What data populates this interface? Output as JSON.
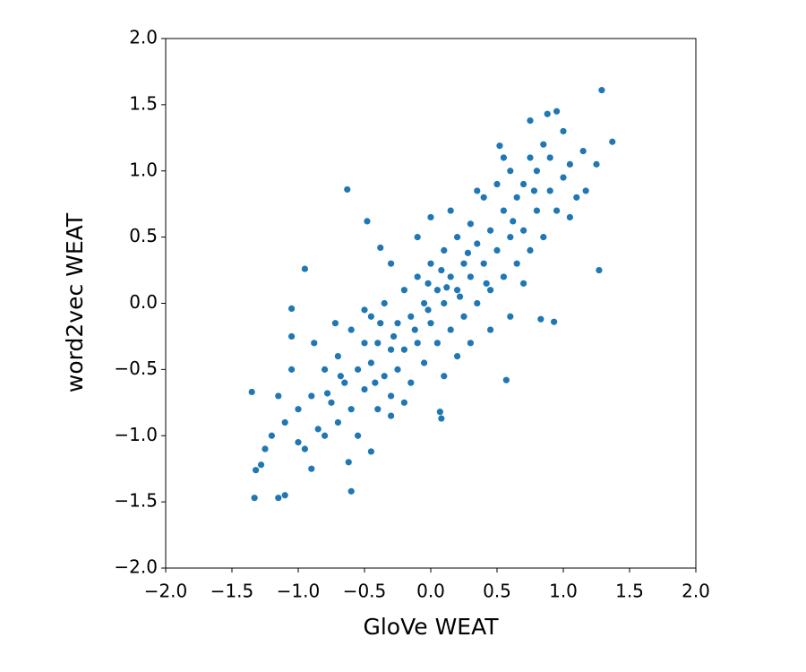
{
  "chart_data": {
    "type": "scatter",
    "xlabel": "GloVe WEAT",
    "ylabel": "word2vec WEAT",
    "color": "#1f77b4",
    "xlim": [
      -2,
      2
    ],
    "ylim": [
      -2,
      2
    ],
    "xticks": [
      {
        "value": -2,
        "label": "−2.0"
      },
      {
        "value": -1.5,
        "label": "−1.5"
      },
      {
        "value": -1,
        "label": "−1.0"
      },
      {
        "value": -0.5,
        "label": "−0.5"
      },
      {
        "value": 0,
        "label": "0.0"
      },
      0.5,
      {
        "value": 1,
        "label": "1.0"
      },
      1.5,
      {
        "value": 2,
        "label": "2.0"
      }
    ],
    "yticks": [
      {
        "value": -2,
        "label": "−2.0"
      },
      {
        "value": -1.5,
        "label": "−1.5"
      },
      {
        "value": -1,
        "label": "−1.0"
      },
      {
        "value": -0.5,
        "label": "−0.5"
      },
      {
        "value": 0,
        "label": "0.0"
      },
      0.5,
      {
        "value": 1,
        "label": "1.0"
      },
      1.5,
      {
        "value": 2,
        "label": "2.0"
      }
    ],
    "x": [
      1.29,
      1.37,
      1.27,
      0.95,
      0.88,
      0.75,
      -0.63,
      -0.95,
      -1.05,
      -1.35,
      -1.33,
      -1.15,
      -0.6,
      0.57,
      0.93,
      1.17,
      1.05,
      1.25,
      0.52,
      -1.1,
      -1.32,
      -1.28,
      -0.48,
      -0.38,
      0.83,
      -1.05,
      -1.05,
      0.08,
      0.07,
      -0.3,
      -0.45,
      -1.0,
      -0.9,
      -1.2,
      -1.1,
      -1.0,
      -0.95,
      -0.9,
      -0.85,
      -0.8,
      -0.8,
      -0.75,
      -0.7,
      -0.7,
      -0.65,
      -0.6,
      -0.6,
      -0.55,
      -0.55,
      -0.5,
      -0.5,
      -0.45,
      -0.45,
      -0.4,
      -0.4,
      -0.35,
      -0.35,
      -0.3,
      -0.3,
      -0.25,
      -0.25,
      -0.2,
      -0.2,
      -0.15,
      -0.15,
      -0.1,
      -0.1,
      -0.05,
      -0.05,
      0.0,
      0.0,
      0.05,
      0.05,
      0.1,
      0.1,
      0.15,
      0.15,
      0.2,
      0.2,
      0.25,
      0.25,
      0.3,
      0.3,
      0.35,
      0.35,
      0.4,
      0.4,
      0.45,
      0.45,
      0.5,
      0.5,
      0.55,
      0.55,
      0.6,
      0.6,
      0.65,
      0.65,
      0.7,
      0.7,
      0.75,
      0.75,
      0.8,
      0.8,
      0.85,
      0.9,
      0.9,
      0.95,
      1.0,
      1.05,
      1.1,
      1.15,
      -1.25,
      -1.15,
      -0.88,
      -0.72,
      -0.62,
      -0.3,
      -0.1,
      0.0,
      0.1,
      0.2,
      0.3,
      0.45,
      0.6,
      0.7,
      -0.2,
      -0.5,
      0.15,
      0.35,
      0.55,
      0.85,
      1.0,
      -0.02,
      0.08,
      0.22,
      -0.12,
      -0.38,
      -0.68,
      -0.02,
      0.12,
      0.28,
      0.42,
      -0.28,
      -0.42,
      0.62,
      -0.78,
      0.78
    ],
    "values": [
      1.61,
      1.22,
      0.25,
      1.45,
      1.43,
      1.38,
      0.86,
      0.26,
      -0.04,
      -0.67,
      -1.47,
      -1.47,
      -1.42,
      -0.58,
      -0.14,
      0.85,
      0.65,
      1.05,
      1.19,
      -1.45,
      -1.26,
      -1.22,
      0.62,
      0.42,
      -0.12,
      -0.25,
      -0.5,
      -0.87,
      -0.82,
      -0.85,
      -1.12,
      -1.05,
      -1.25,
      -1.0,
      -0.9,
      -0.8,
      -1.1,
      -0.7,
      -0.95,
      -0.5,
      -1.0,
      -0.75,
      -0.4,
      -0.9,
      -0.6,
      -0.2,
      -0.8,
      -0.5,
      -1.0,
      -0.3,
      -0.65,
      -0.1,
      -0.45,
      -0.8,
      -0.3,
      -0.55,
      0.0,
      -0.35,
      -0.7,
      -0.15,
      -0.5,
      0.1,
      -0.35,
      -0.6,
      -0.1,
      0.2,
      -0.3,
      0.0,
      -0.45,
      0.3,
      -0.15,
      0.1,
      -0.3,
      0.4,
      0.0,
      0.2,
      -0.2,
      0.5,
      0.1,
      0.3,
      -0.1,
      0.6,
      0.2,
      0.0,
      0.45,
      0.8,
      0.3,
      0.1,
      0.55,
      0.9,
      0.4,
      0.2,
      0.7,
      1.0,
      0.5,
      0.3,
      0.8,
      0.9,
      0.55,
      1.1,
      0.4,
      0.7,
      1.0,
      0.5,
      0.85,
      1.1,
      0.7,
      0.95,
      1.05,
      0.8,
      1.15,
      -1.1,
      -0.7,
      -0.3,
      -0.15,
      -1.2,
      0.3,
      0.5,
      0.65,
      -0.55,
      -0.4,
      -0.3,
      -0.2,
      -0.1,
      0.15,
      -0.75,
      -0.05,
      0.7,
      0.85,
      1.1,
      1.2,
      1.3,
      0.15,
      0.25,
      0.05,
      -0.2,
      -0.15,
      -0.55,
      -0.05,
      0.12,
      0.38,
      0.15,
      -0.25,
      -0.6,
      0.62,
      -0.68,
      0.85
    ]
  }
}
